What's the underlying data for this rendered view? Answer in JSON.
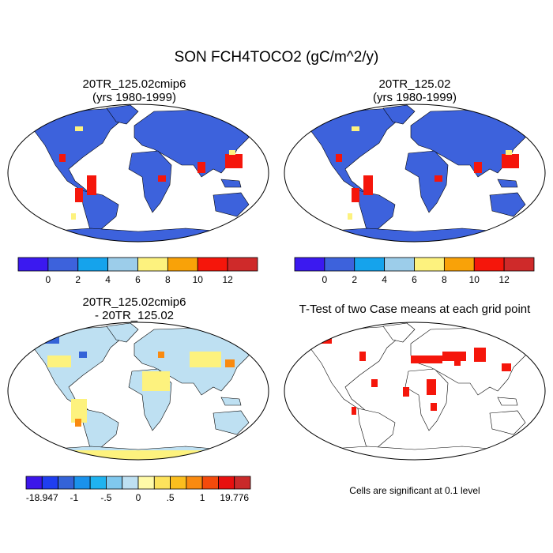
{
  "figure_title": "SON FCH4TOCO2 (gC/m^2/y)",
  "panels": [
    {
      "title_line1": "20TR_125.02cmip6",
      "title_line2": "(yrs 1980-1999)"
    },
    {
      "title_line1": "20TR_125.02",
      "title_line2": "(yrs 1980-1999)"
    },
    {
      "title_line1": "20TR_125.02cmip6",
      "title_line2": "- 20TR_125.02"
    },
    {
      "title_line1": "T-Test of two Case means at each grid point",
      "title_line2": ""
    }
  ],
  "colorbar_main": {
    "colors": [
      "#3b19f0",
      "#3d62dc",
      "#15a3ec",
      "#9ccdea",
      "#fdf27e",
      "#f9a208",
      "#f5160b",
      "#cf2a2a"
    ],
    "labels": [
      "0",
      "2",
      "4",
      "6",
      "8",
      "10",
      "12"
    ]
  },
  "colorbar_diff": {
    "colors": [
      "#3c16ea",
      "#1f3ef0",
      "#3463d8",
      "#1a92ec",
      "#1fb3f0",
      "#80c8ee",
      "#bee0f2",
      "#fffaa8",
      "#fde35c",
      "#fbbe1e",
      "#f98a10",
      "#f44a0b",
      "#e8100f",
      "#c92a2a"
    ],
    "labels": [
      "-18.947",
      "-1",
      "-.5",
      "0",
      ".5",
      "1",
      "19.776"
    ]
  },
  "significance_note": "Cells are significant at 0.1 level"
}
